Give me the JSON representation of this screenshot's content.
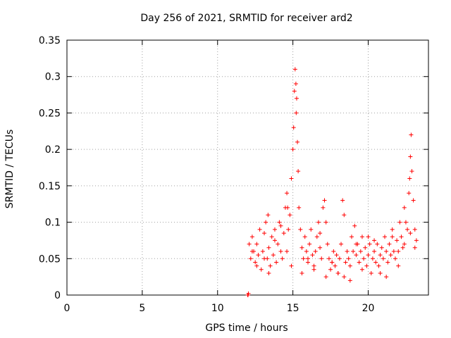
{
  "chart_data": {
    "type": "scatter",
    "title": "Day 256 of 2021, SRMTID for receiver ard2",
    "xlabel": "GPS time / hours",
    "ylabel": "SRMTID / TECUs",
    "xlim": [
      0,
      24
    ],
    "ylim": [
      0,
      0.35
    ],
    "xticks": [
      0,
      5,
      10,
      15,
      20
    ],
    "xtick_labels": [
      "0",
      "5",
      "10",
      "15",
      "20"
    ],
    "yticks": [
      0,
      0.05,
      0.1,
      0.15,
      0.2,
      0.25,
      0.3,
      0.35
    ],
    "ytick_labels": [
      "0",
      "0.05",
      "0.1",
      "0.15",
      "0.2",
      "0.25",
      "0.3",
      "0.35"
    ],
    "grid": true,
    "marker": "plus",
    "color": "#ff0000",
    "series": [
      {
        "name": "SRMTID ard2",
        "x": [
          12.0,
          12.02,
          12.05,
          12.1,
          12.2,
          12.3,
          12.4,
          12.5,
          12.6,
          12.7,
          12.8,
          12.9,
          13.0,
          13.1,
          13.2,
          13.3,
          13.35,
          13.4,
          13.5,
          13.6,
          13.7,
          13.8,
          13.9,
          14.0,
          14.1,
          14.2,
          14.3,
          14.4,
          14.5,
          14.6,
          14.65,
          14.7,
          14.8,
          14.9,
          15.0,
          15.05,
          15.1,
          15.15,
          15.2,
          15.22,
          15.25,
          15.3,
          15.35,
          15.4,
          15.5,
          15.6,
          15.7,
          15.8,
          15.9,
          16.0,
          16.1,
          16.2,
          16.3,
          16.4,
          16.5,
          16.6,
          16.7,
          16.8,
          16.9,
          17.0,
          17.1,
          17.2,
          17.3,
          17.4,
          17.5,
          17.6,
          17.7,
          17.8,
          17.9,
          18.0,
          18.1,
          18.2,
          18.3,
          18.4,
          18.5,
          18.6,
          18.7,
          18.8,
          18.9,
          19.0,
          19.1,
          19.2,
          19.3,
          19.4,
          19.5,
          19.6,
          19.7,
          19.8,
          19.9,
          20.0,
          20.1,
          20.2,
          20.3,
          20.4,
          20.5,
          20.6,
          20.7,
          20.8,
          20.9,
          21.0,
          21.1,
          21.2,
          21.3,
          21.4,
          21.5,
          21.6,
          21.7,
          21.8,
          21.9,
          22.0,
          22.1,
          22.2,
          22.3,
          22.4,
          22.5,
          22.6,
          22.7,
          22.75,
          22.8,
          22.85,
          22.9,
          23.0,
          23.1,
          23.2,
          12.3,
          12.6,
          13.1,
          13.4,
          13.8,
          14.2,
          14.6,
          14.9,
          15.6,
          16.0,
          16.4,
          16.8,
          17.2,
          17.6,
          18.0,
          18.4,
          18.8,
          19.2,
          19.6,
          20.0,
          20.4,
          20.8,
          21.2,
          21.6,
          22.0,
          22.4,
          22.8,
          23.1
        ],
        "y": [
          0.0,
          0.0,
          0.002,
          0.07,
          0.05,
          0.08,
          0.06,
          0.045,
          0.07,
          0.055,
          0.09,
          0.035,
          0.06,
          0.085,
          0.1,
          0.05,
          0.11,
          0.065,
          0.04,
          0.08,
          0.055,
          0.09,
          0.045,
          0.07,
          0.1,
          0.06,
          0.05,
          0.085,
          0.12,
          0.14,
          0.12,
          0.09,
          0.11,
          0.16,
          0.2,
          0.23,
          0.28,
          0.31,
          0.29,
          0.25,
          0.27,
          0.21,
          0.17,
          0.12,
          0.09,
          0.065,
          0.05,
          0.08,
          0.06,
          0.045,
          0.07,
          0.09,
          0.055,
          0.04,
          0.06,
          0.08,
          0.1,
          0.065,
          0.05,
          0.12,
          0.13,
          0.1,
          0.07,
          0.05,
          0.035,
          0.045,
          0.06,
          0.04,
          0.055,
          0.03,
          0.05,
          0.07,
          0.13,
          0.11,
          0.045,
          0.06,
          0.05,
          0.04,
          0.08,
          0.06,
          0.095,
          0.055,
          0.07,
          0.045,
          0.06,
          0.08,
          0.05,
          0.065,
          0.04,
          0.055,
          0.07,
          0.03,
          0.05,
          0.06,
          0.045,
          0.07,
          0.04,
          0.055,
          0.065,
          0.05,
          0.08,
          0.06,
          0.045,
          0.07,
          0.055,
          0.09,
          0.06,
          0.05,
          0.075,
          0.06,
          0.1,
          0.08,
          0.065,
          0.12,
          0.1,
          0.09,
          0.14,
          0.16,
          0.19,
          0.22,
          0.17,
          0.13,
          0.09,
          0.075,
          0.06,
          0.04,
          0.05,
          0.03,
          0.075,
          0.095,
          0.06,
          0.04,
          0.03,
          0.05,
          0.035,
          0.085,
          0.025,
          0.045,
          0.03,
          0.025,
          0.02,
          0.07,
          0.035,
          0.08,
          0.075,
          0.03,
          0.025,
          0.08,
          0.04,
          0.07,
          0.085,
          0.065
        ]
      }
    ]
  }
}
